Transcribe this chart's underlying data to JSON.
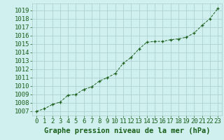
{
  "x": [
    0,
    1,
    2,
    3,
    4,
    5,
    6,
    7,
    8,
    9,
    10,
    11,
    12,
    13,
    14,
    15,
    16,
    17,
    18,
    19,
    20,
    21,
    22,
    23
  ],
  "y": [
    1007.0,
    1007.3,
    1007.8,
    1008.1,
    1008.9,
    1009.0,
    1009.6,
    1009.9,
    1010.6,
    1011.0,
    1011.5,
    1012.7,
    1013.4,
    1014.4,
    1015.2,
    1015.3,
    1015.3,
    1015.5,
    1015.6,
    1015.8,
    1016.3,
    1017.2,
    1018.0,
    1019.2
  ],
  "title": "Graphe pression niveau de la mer (hPa)",
  "ylim_min": 1006.5,
  "ylim_max": 1019.8,
  "yticks": [
    1007,
    1008,
    1009,
    1010,
    1011,
    1012,
    1013,
    1014,
    1015,
    1016,
    1017,
    1018,
    1019
  ],
  "bg_color": "#cff0ee",
  "grid_color": "#aacccc",
  "line_color": "#1a5e1a",
  "marker_color": "#1a5e1a",
  "title_color": "#1a5e1a",
  "title_fontsize": 7.5,
  "tick_fontsize": 6.5
}
